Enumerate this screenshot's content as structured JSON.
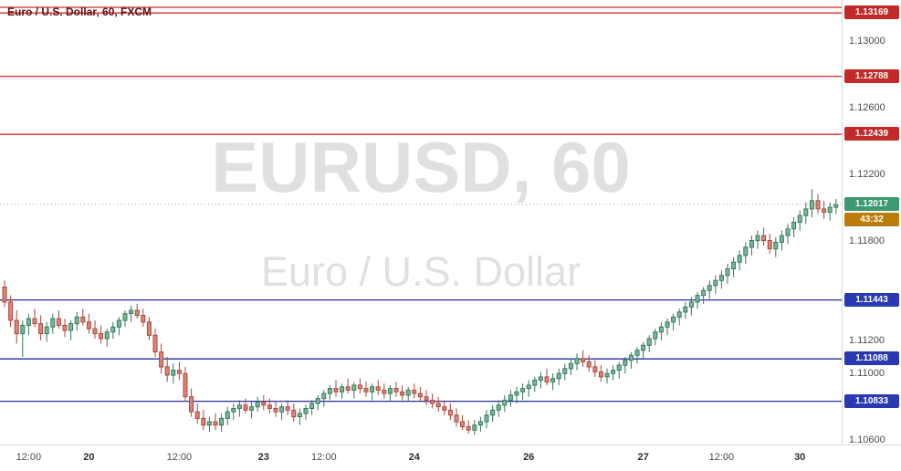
{
  "legend": {
    "text": "Euro / U.S. Dollar, 60, FXCM"
  },
  "watermark": {
    "line1": "EURUSD, 60",
    "line2": "Euro / U.S. Dollar"
  },
  "colors": {
    "background": "#ffffff",
    "up_fill": "#7cb898",
    "up_border": "#33785a",
    "down_fill": "#d9857c",
    "down_border": "#ad453c",
    "resistance_line": "#d12f2f",
    "resistance_tag": "#c22a2a",
    "support_line": "#22309c",
    "support_tag": "#2a38b2",
    "current_line": "#8fae9f",
    "current_tag": "#3d9970",
    "countdown_tag": "#bb7d08",
    "axis_text": "#4a4a4a",
    "axis_text_major": "#2e2e2e",
    "legend_text": "#5c1212",
    "watermark": "rgba(0,0,0,0.12)",
    "separator": "#d9d9d9"
  },
  "levels": {
    "resistance": [
      {
        "price": 1.13203,
        "label": ""
      },
      {
        "price": 1.13169,
        "label": "1.13169"
      },
      {
        "price": 1.12788,
        "label": "1.12788"
      },
      {
        "price": 1.12439,
        "label": "1.12439"
      }
    ],
    "support": [
      {
        "price": 1.11443,
        "label": "1.11443"
      },
      {
        "price": 1.11088,
        "label": "1.11088"
      },
      {
        "price": 1.10833,
        "label": "1.10833"
      }
    ],
    "current": {
      "price": 1.12017,
      "label": "1.12017",
      "countdown": "43:32"
    }
  },
  "chart_data": {
    "type": "candlestick",
    "symbol": "EURUSD",
    "interval": "60",
    "description": "Euro / U.S. Dollar",
    "provider": "FXCM",
    "ylim": [
      1.10573,
      1.13247
    ],
    "price_axis_ticks": [
      1.13,
      1.126,
      1.122,
      1.118,
      1.112,
      1.11,
      1.106
    ],
    "time_axis_labels": [
      {
        "text": "12:00",
        "index": 4,
        "major": false
      },
      {
        "text": "20",
        "index": 14,
        "major": true
      },
      {
        "text": "12:00",
        "index": 29,
        "major": false
      },
      {
        "text": "23",
        "index": 43,
        "major": true
      },
      {
        "text": "12:00",
        "index": 53,
        "major": false
      },
      {
        "text": "24",
        "index": 68,
        "major": true
      },
      {
        "text": "26",
        "index": 87,
        "major": true
      },
      {
        "text": "27",
        "index": 106,
        "major": true
      },
      {
        "text": "12:00",
        "index": 119,
        "major": false
      },
      {
        "text": "30",
        "index": 132,
        "major": true
      }
    ],
    "candles": [
      [
        1.1152,
        1.1156,
        1.114,
        1.1143
      ],
      [
        1.1143,
        1.1147,
        1.1128,
        1.1132
      ],
      [
        1.1132,
        1.1138,
        1.1118,
        1.1124
      ],
      [
        1.1124,
        1.1132,
        1.111,
        1.1129
      ],
      [
        1.1129,
        1.1136,
        1.1123,
        1.1133
      ],
      [
        1.1133,
        1.1139,
        1.1128,
        1.113
      ],
      [
        1.113,
        1.1135,
        1.112,
        1.1124
      ],
      [
        1.1124,
        1.1131,
        1.1119,
        1.1128
      ],
      [
        1.1128,
        1.1136,
        1.1124,
        1.1133
      ],
      [
        1.1133,
        1.1138,
        1.1127,
        1.1129
      ],
      [
        1.1129,
        1.1133,
        1.1122,
        1.1126
      ],
      [
        1.1126,
        1.1132,
        1.112,
        1.113
      ],
      [
        1.113,
        1.1137,
        1.1126,
        1.1134
      ],
      [
        1.1134,
        1.1139,
        1.1129,
        1.1131
      ],
      [
        1.1131,
        1.1136,
        1.1124,
        1.1127
      ],
      [
        1.1127,
        1.1132,
        1.1121,
        1.1124
      ],
      [
        1.1124,
        1.1129,
        1.1118,
        1.1121
      ],
      [
        1.1121,
        1.1127,
        1.1116,
        1.1125
      ],
      [
        1.1125,
        1.1131,
        1.1121,
        1.1128
      ],
      [
        1.1128,
        1.1134,
        1.1123,
        1.1132
      ],
      [
        1.1132,
        1.1138,
        1.1128,
        1.1136
      ],
      [
        1.1136,
        1.1141,
        1.1131,
        1.1138
      ],
      [
        1.1138,
        1.1142,
        1.1133,
        1.1135
      ],
      [
        1.1135,
        1.1139,
        1.1128,
        1.1131
      ],
      [
        1.1131,
        1.1134,
        1.112,
        1.1123
      ],
      [
        1.1123,
        1.1127,
        1.111,
        1.1113
      ],
      [
        1.1113,
        1.1118,
        1.11,
        1.1104
      ],
      [
        1.1104,
        1.111,
        1.1095,
        1.1099
      ],
      [
        1.1099,
        1.1106,
        1.1094,
        1.1102
      ],
      [
        1.1102,
        1.1107,
        1.1096,
        1.11
      ],
      [
        1.11,
        1.1104,
        1.1083,
        1.1086
      ],
      [
        1.1086,
        1.1091,
        1.1074,
        1.1077
      ],
      [
        1.1077,
        1.1082,
        1.107,
        1.1073
      ],
      [
        1.1073,
        1.1078,
        1.1066,
        1.1069
      ],
      [
        1.1069,
        1.1074,
        1.1065,
        1.1071
      ],
      [
        1.1071,
        1.1076,
        1.1066,
        1.1069
      ],
      [
        1.1069,
        1.1076,
        1.1065,
        1.1073
      ],
      [
        1.1073,
        1.108,
        1.1069,
        1.1077
      ],
      [
        1.1077,
        1.1082,
        1.1072,
        1.1079
      ],
      [
        1.1079,
        1.1084,
        1.1074,
        1.1081
      ],
      [
        1.1081,
        1.1085,
        1.1076,
        1.1078
      ],
      [
        1.1078,
        1.1083,
        1.1073,
        1.108
      ],
      [
        1.108,
        1.1086,
        1.1077,
        1.1083
      ],
      [
        1.1083,
        1.1087,
        1.1078,
        1.1081
      ],
      [
        1.1081,
        1.1085,
        1.1076,
        1.1079
      ],
      [
        1.1079,
        1.1083,
        1.1074,
        1.1077
      ],
      [
        1.1077,
        1.1082,
        1.1072,
        1.108
      ],
      [
        1.108,
        1.1084,
        1.1075,
        1.1078
      ],
      [
        1.1078,
        1.1082,
        1.1071,
        1.1074
      ],
      [
        1.1074,
        1.1079,
        1.1069,
        1.1076
      ],
      [
        1.1076,
        1.1081,
        1.1072,
        1.1079
      ],
      [
        1.1079,
        1.1084,
        1.1075,
        1.1082
      ],
      [
        1.1082,
        1.1087,
        1.1078,
        1.1085
      ],
      [
        1.1085,
        1.109,
        1.108,
        1.1088
      ],
      [
        1.1088,
        1.1093,
        1.1084,
        1.1091
      ],
      [
        1.1091,
        1.1096,
        1.1086,
        1.1089
      ],
      [
        1.1089,
        1.1094,
        1.1085,
        1.1092
      ],
      [
        1.1092,
        1.1097,
        1.1088,
        1.109
      ],
      [
        1.109,
        1.1095,
        1.1085,
        1.1093
      ],
      [
        1.1093,
        1.1097,
        1.1088,
        1.1091
      ],
      [
        1.1091,
        1.1095,
        1.1086,
        1.1089
      ],
      [
        1.1089,
        1.1094,
        1.1084,
        1.1092
      ],
      [
        1.1092,
        1.1096,
        1.1087,
        1.109
      ],
      [
        1.109,
        1.1094,
        1.1085,
        1.1088
      ],
      [
        1.1088,
        1.1093,
        1.1083,
        1.1091
      ],
      [
        1.1091,
        1.1095,
        1.1086,
        1.1089
      ],
      [
        1.1089,
        1.1093,
        1.1084,
        1.1087
      ],
      [
        1.1087,
        1.1092,
        1.1083,
        1.109
      ],
      [
        1.109,
        1.1094,
        1.1085,
        1.1088
      ],
      [
        1.1088,
        1.1092,
        1.1083,
        1.1086
      ],
      [
        1.1086,
        1.109,
        1.1081,
        1.1084
      ],
      [
        1.1084,
        1.1088,
        1.1079,
        1.1082
      ],
      [
        1.1082,
        1.1086,
        1.1077,
        1.108
      ],
      [
        1.108,
        1.1084,
        1.1075,
        1.1078
      ],
      [
        1.1078,
        1.1082,
        1.1072,
        1.1075
      ],
      [
        1.1075,
        1.1079,
        1.1068,
        1.1071
      ],
      [
        1.1071,
        1.1075,
        1.1066,
        1.1068
      ],
      [
        1.1068,
        1.1072,
        1.1064,
        1.1066
      ],
      [
        1.1066,
        1.1072,
        1.1063,
        1.1069
      ],
      [
        1.1069,
        1.1074,
        1.1065,
        1.1071
      ],
      [
        1.1071,
        1.1078,
        1.1067,
        1.1075
      ],
      [
        1.1075,
        1.1081,
        1.1071,
        1.1078
      ],
      [
        1.1078,
        1.1084,
        1.1074,
        1.1081
      ],
      [
        1.1081,
        1.1087,
        1.1077,
        1.1084
      ],
      [
        1.1084,
        1.109,
        1.108,
        1.1087
      ],
      [
        1.1087,
        1.1092,
        1.1082,
        1.1089
      ],
      [
        1.1089,
        1.1094,
        1.1084,
        1.1091
      ],
      [
        1.1091,
        1.1096,
        1.1086,
        1.1093
      ],
      [
        1.1093,
        1.1098,
        1.1089,
        1.1096
      ],
      [
        1.1096,
        1.1101,
        1.1091,
        1.1098
      ],
      [
        1.1098,
        1.1103,
        1.1093,
        1.1095
      ],
      [
        1.1095,
        1.11,
        1.109,
        1.1097
      ],
      [
        1.1097,
        1.1103,
        1.1093,
        1.11
      ],
      [
        1.11,
        1.1106,
        1.1096,
        1.1103
      ],
      [
        1.1103,
        1.1109,
        1.1099,
        1.1106
      ],
      [
        1.1106,
        1.1112,
        1.1102,
        1.1109
      ],
      [
        1.1109,
        1.1114,
        1.1104,
        1.1107
      ],
      [
        1.1107,
        1.1111,
        1.1101,
        1.1104
      ],
      [
        1.1104,
        1.1108,
        1.1098,
        1.1101
      ],
      [
        1.1101,
        1.1105,
        1.1095,
        1.1098
      ],
      [
        1.1098,
        1.1103,
        1.1094,
        1.11
      ],
      [
        1.11,
        1.1105,
        1.1096,
        1.1102
      ],
      [
        1.1102,
        1.1107,
        1.1097,
        1.1105
      ],
      [
        1.1105,
        1.111,
        1.11,
        1.1108
      ],
      [
        1.1108,
        1.1113,
        1.1103,
        1.1111
      ],
      [
        1.1111,
        1.1116,
        1.1106,
        1.1114
      ],
      [
        1.1114,
        1.1119,
        1.1109,
        1.1117
      ],
      [
        1.1117,
        1.1123,
        1.1113,
        1.1121
      ],
      [
        1.1121,
        1.1127,
        1.1117,
        1.1125
      ],
      [
        1.1125,
        1.1131,
        1.112,
        1.1128
      ],
      [
        1.1128,
        1.1133,
        1.1123,
        1.1131
      ],
      [
        1.1131,
        1.1136,
        1.1126,
        1.1134
      ],
      [
        1.1134,
        1.1139,
        1.1129,
        1.1137
      ],
      [
        1.1137,
        1.1143,
        1.1133,
        1.114
      ],
      [
        1.114,
        1.1146,
        1.1135,
        1.1143
      ],
      [
        1.1143,
        1.1149,
        1.1139,
        1.1147
      ],
      [
        1.1147,
        1.1152,
        1.1142,
        1.115
      ],
      [
        1.115,
        1.1156,
        1.1145,
        1.1153
      ],
      [
        1.1153,
        1.1159,
        1.1148,
        1.1156
      ],
      [
        1.1156,
        1.1162,
        1.1151,
        1.1159
      ],
      [
        1.1159,
        1.1166,
        1.1154,
        1.1163
      ],
      [
        1.1163,
        1.117,
        1.1158,
        1.1167
      ],
      [
        1.1167,
        1.1174,
        1.1162,
        1.1171
      ],
      [
        1.1171,
        1.1179,
        1.1166,
        1.1176
      ],
      [
        1.1176,
        1.1183,
        1.1171,
        1.118
      ],
      [
        1.118,
        1.1186,
        1.1175,
        1.1183
      ],
      [
        1.1183,
        1.1188,
        1.1177,
        1.118
      ],
      [
        1.118,
        1.1184,
        1.1172,
        1.1175
      ],
      [
        1.1175,
        1.1182,
        1.117,
        1.1179
      ],
      [
        1.1179,
        1.1186,
        1.1174,
        1.1183
      ],
      [
        1.1183,
        1.119,
        1.1178,
        1.1187
      ],
      [
        1.1187,
        1.1194,
        1.1182,
        1.1191
      ],
      [
        1.1191,
        1.1198,
        1.1186,
        1.1195
      ],
      [
        1.1195,
        1.1203,
        1.119,
        1.1199
      ],
      [
        1.1199,
        1.1211,
        1.1194,
        1.1204
      ],
      [
        1.1204,
        1.1208,
        1.1196,
        1.1199
      ],
      [
        1.1199,
        1.1204,
        1.1193,
        1.1197
      ],
      [
        1.1197,
        1.1203,
        1.1192,
        1.12
      ],
      [
        1.12,
        1.1205,
        1.1196,
        1.12017
      ]
    ]
  }
}
